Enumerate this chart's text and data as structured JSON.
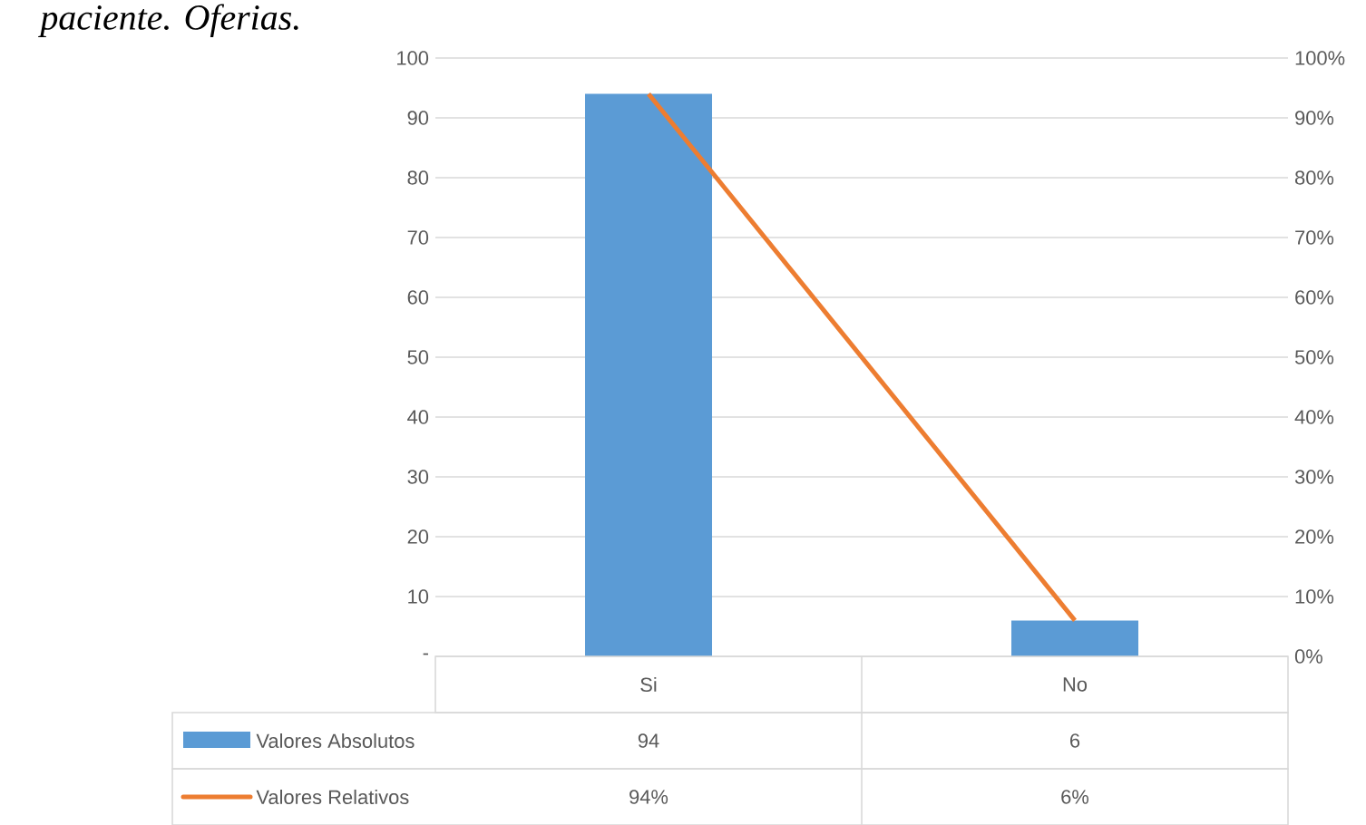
{
  "chart_data": {
    "type": "bar",
    "title": "paciente. Oferias.",
    "categories": [
      "Si",
      "No"
    ],
    "series": [
      {
        "name": "Valores Absolutos",
        "color": "#5b9bd5",
        "values": [
          94,
          6
        ],
        "value_labels": [
          "94",
          "6"
        ]
      },
      {
        "name": "Valores Relativos",
        "type": "line",
        "axis": "y2",
        "color": "#ed7d31",
        "values": [
          94,
          6
        ],
        "value_labels": [
          "94%",
          "6%"
        ]
      }
    ],
    "ylim": [
      0,
      100
    ],
    "yticks": [
      {
        "value": 0,
        "label": "-"
      },
      10,
      20,
      30,
      40,
      50,
      60,
      70,
      80,
      90,
      100
    ],
    "y2lim": [
      0,
      100
    ],
    "y2ticks": [
      {
        "value": 0,
        "label": "0%"
      },
      {
        "value": 10,
        "label": "10%"
      },
      {
        "value": 20,
        "label": "20%"
      },
      {
        "value": 30,
        "label": "30%"
      },
      {
        "value": 40,
        "label": "40%"
      },
      {
        "value": 50,
        "label": "50%"
      },
      {
        "value": 60,
        "label": "60%"
      },
      {
        "value": 70,
        "label": "70%"
      },
      {
        "value": 80,
        "label": "80%"
      },
      {
        "value": 90,
        "label": "90%"
      },
      {
        "value": 100,
        "label": "100%"
      }
    ],
    "grid": "y",
    "legend": "bottom",
    "marker": "none",
    "line_style": "solid"
  }
}
